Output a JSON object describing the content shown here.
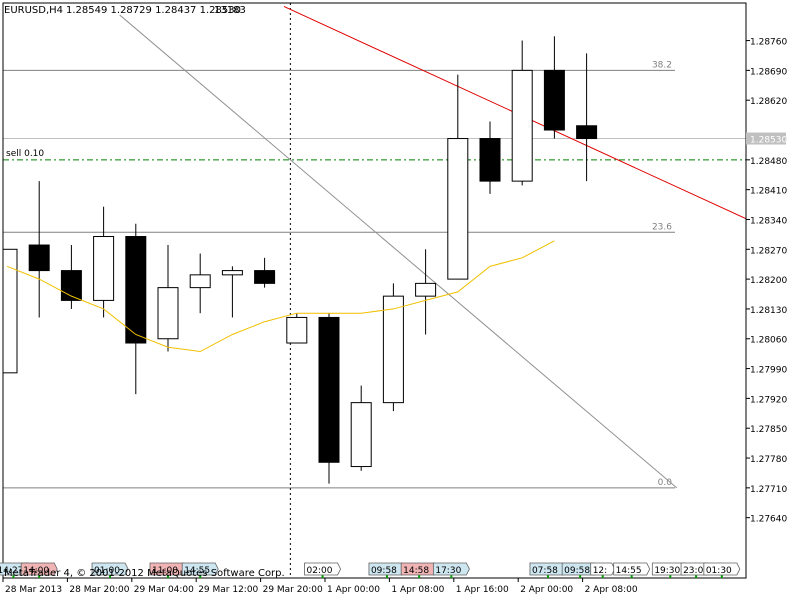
{
  "header": {
    "symbol": "EURUSD,H4",
    "ohlc": "1.28549 1.28729 1.28437 1.28530",
    "volume": "13183"
  },
  "footer": {
    "copyright": "MetaTrader 4, © 2001-2012 MetaQuotes Software Corp."
  },
  "chart_data": {
    "type": "candlestick",
    "symbol": "EURUSD",
    "timeframe": "H4",
    "ylim": [
      1.2755,
      1.2882
    ],
    "y_ticks": [
      "1.28760",
      "1.28690",
      "1.28620",
      "1.28530",
      "1.28480",
      "1.28410",
      "1.28340",
      "1.28270",
      "1.28200",
      "1.28130",
      "1.28060",
      "1.27990",
      "1.27920",
      "1.27850",
      "1.27780",
      "1.27710",
      "1.27640"
    ],
    "x_labels": [
      "28 Mar 2013",
      "28 Mar 20:00",
      "29 Mar 04:00",
      "29 Mar 12:00",
      "29 Mar 20:00",
      "1 Apr 00:00",
      "1 Apr 08:00",
      "1 Apr 16:00",
      "2 Apr 00:00",
      "2 Apr 08:00"
    ],
    "x_label_bars": [
      0,
      2,
      4,
      6,
      8,
      10,
      12,
      14,
      16,
      18
    ],
    "candles": [
      {
        "o": 1.2798,
        "h": 1.2827,
        "l": 1.2798,
        "c": 1.2827
      },
      {
        "o": 1.2828,
        "h": 1.2843,
        "l": 1.2811,
        "c": 1.2822
      },
      {
        "o": 1.2822,
        "h": 1.2828,
        "l": 1.2813,
        "c": 1.2815
      },
      {
        "o": 1.2815,
        "h": 1.2837,
        "l": 1.2811,
        "c": 1.283
      },
      {
        "o": 1.283,
        "h": 1.2833,
        "l": 1.2793,
        "c": 1.2805
      },
      {
        "o": 1.2806,
        "h": 1.2828,
        "l": 1.2803,
        "c": 1.2818
      },
      {
        "o": 1.2818,
        "h": 1.2826,
        "l": 1.2812,
        "c": 1.2821
      },
      {
        "o": 1.2821,
        "h": 1.2823,
        "l": 1.2811,
        "c": 1.2822
      },
      {
        "o": 1.2822,
        "h": 1.2825,
        "l": 1.2818,
        "c": 1.2819
      },
      {
        "o": 1.2805,
        "h": 1.2812,
        "l": 1.2805,
        "c": 1.2811
      },
      {
        "o": 1.2811,
        "h": 1.2812,
        "l": 1.2772,
        "c": 1.2777
      },
      {
        "o": 1.2776,
        "h": 1.2795,
        "l": 1.2775,
        "c": 1.2791
      },
      {
        "o": 1.2791,
        "h": 1.2819,
        "l": 1.2789,
        "c": 1.2816
      },
      {
        "o": 1.2816,
        "h": 1.2827,
        "l": 1.2807,
        "c": 1.2819
      },
      {
        "o": 1.282,
        "h": 1.2868,
        "l": 1.282,
        "c": 1.2853
      },
      {
        "o": 1.2853,
        "h": 1.2857,
        "l": 1.284,
        "c": 1.2843
      },
      {
        "o": 1.2843,
        "h": 1.2876,
        "l": 1.2842,
        "c": 1.2869
      },
      {
        "o": 1.2869,
        "h": 1.2877,
        "l": 1.2853,
        "c": 1.2855
      },
      {
        "o": 1.2856,
        "h": 1.2873,
        "l": 1.2843,
        "c": 1.2853
      }
    ],
    "moving_average": [
      1.2823,
      1.282,
      1.2816,
      1.2813,
      1.2807,
      1.2804,
      1.2803,
      1.2807,
      1.281,
      1.2812,
      1.2812,
      1.2812,
      1.2813,
      1.2815,
      1.2817,
      1.2823,
      1.2825,
      1.2829
    ],
    "fibonacci_levels": [
      {
        "label": "38.2",
        "price": 1.2869
      },
      {
        "label": "23.6",
        "price": 1.2831
      },
      {
        "label": "0.0",
        "price": 1.2771
      }
    ],
    "order_line": {
      "label": "sell 0.10",
      "price": 1.2848
    },
    "current_price": {
      "label": "1.28530",
      "price": 1.2853
    },
    "trendlines": [
      {
        "kind": "red",
        "p1": {
          "bar": 8.6,
          "price": 1.2884
        },
        "p2": {
          "bar": 23.0,
          "price": 1.2834
        }
      },
      {
        "kind": "gray",
        "p1": {
          "bar": 3.5,
          "price": 1.2882
        },
        "p2": {
          "bar": 20.8,
          "price": 1.2771
        }
      }
    ],
    "vertical_separator_bar": 8.8,
    "time_markers": [
      {
        "text": "14:27",
        "bar": 0.2,
        "style": "blue"
      },
      {
        "text": "14:00",
        "bar": 1.0,
        "style": "red"
      },
      {
        "text": "01:00",
        "bar": 3.2,
        "style": "blue"
      },
      {
        "text": "11:00",
        "bar": 5.0,
        "style": "red"
      },
      {
        "text": "14:55",
        "bar": 6.0,
        "style": "blue"
      },
      {
        "text": "02:00",
        "bar": 9.8,
        "style": "white"
      },
      {
        "text": "09:58",
        "bar": 11.8,
        "style": "blue"
      },
      {
        "text": "14:58",
        "bar": 12.8,
        "style": "red"
      },
      {
        "text": "17:30",
        "bar": 13.8,
        "style": "blue"
      },
      {
        "text": "07:58",
        "bar": 16.8,
        "style": "blue"
      },
      {
        "text": "09:58",
        "bar": 17.8,
        "style": "blue"
      },
      {
        "text": "12:",
        "bar": 18.5,
        "style": "white"
      },
      {
        "text": "14:55",
        "bar": 19.4,
        "style": "white"
      },
      {
        "text": "19:30",
        "bar": 20.6,
        "style": "white"
      },
      {
        "text": "23:0",
        "bar": 21.4,
        "style": "white"
      },
      {
        "text": "01:30",
        "bar": 22.2,
        "style": "white"
      }
    ],
    "colors": {
      "bull_body": "#ffffff",
      "bear_body": "#000000",
      "candle_outline": "#000000",
      "moving_average": "#f0c000",
      "red_trendline": "#e00000",
      "gray_trendline": "#909090",
      "fib_line": "#808080",
      "order_line": "#008000",
      "current_price_line": "#c0c0c0",
      "event_marker": "#00a000",
      "marker_blue": "#cde6f0",
      "marker_red": "#f0b4b4",
      "marker_white": "#ffffff"
    }
  }
}
